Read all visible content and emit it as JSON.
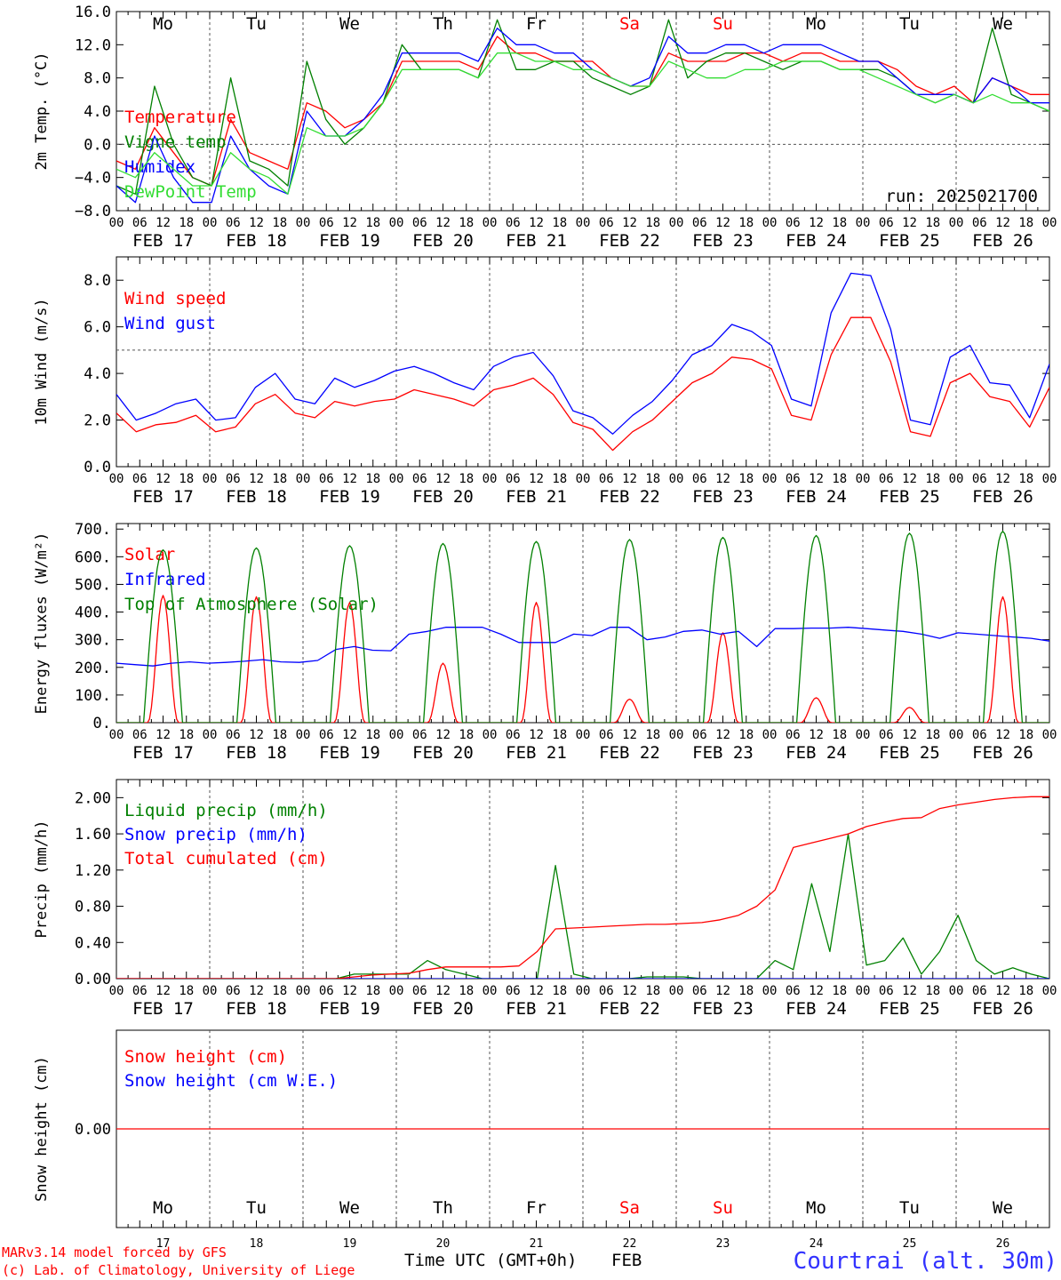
{
  "colors": {
    "red": "#ff0000",
    "darkgreen": "#008000",
    "blue": "#0000ff",
    "lightgreen": "#33dd33",
    "day_red": "#ff0000"
  },
  "days": {
    "weekday": [
      "Mo",
      "Tu",
      "We",
      "Th",
      "Fr",
      "Sa",
      "Su",
      "Mo",
      "Tu",
      "We"
    ],
    "weekend_flags": [
      false,
      false,
      false,
      false,
      false,
      true,
      true,
      false,
      false,
      false
    ],
    "date_labels": [
      "FEB 17",
      "FEB 18",
      "FEB 19",
      "FEB 20",
      "FEB 21",
      "FEB 22",
      "FEB 23",
      "FEB 24",
      "FEB 25",
      "FEB 26"
    ],
    "day_numbers": [
      "17",
      "18",
      "19",
      "20",
      "21",
      "22",
      "23",
      "24",
      "25",
      "26"
    ],
    "hour_ticks": [
      "00",
      "06",
      "12",
      "18"
    ],
    "last_hour": "00"
  },
  "footer": {
    "credit_1": "MARv3.14 model forced by GFS",
    "credit_2": "(c) Lab. of Climatology, University of Liege",
    "xlabel": "Time UTC (GMT+0h)",
    "month": "FEB",
    "station": "Courtrai (alt. 30m)"
  },
  "chart_data": [
    {
      "type": "line",
      "ylabel": "2m Temp. (°C)",
      "ylim": [
        -8,
        16
      ],
      "yticks": [
        -8,
        -4,
        0,
        4,
        8,
        12,
        16
      ],
      "ytick_labels": [
        "−8.0",
        "−4.0",
        "0.0",
        "4.0",
        "8.0",
        "12.0",
        "16.0"
      ],
      "ref_line": 0,
      "run_label": "run: 2025021700",
      "x_unit": "hours since FEB 17 00 UTC (6-hourly)",
      "series": [
        {
          "name": "Temperature",
          "color": "red",
          "values": [
            -2,
            -3,
            2,
            -1,
            -4,
            -5,
            3,
            -1,
            -2,
            -3,
            5,
            4,
            2,
            3,
            5,
            10,
            10,
            10,
            10,
            9,
            13,
            11,
            11,
            10,
            10,
            10,
            8,
            7,
            7,
            11,
            10,
            10,
            10,
            11,
            11,
            10,
            11,
            11,
            10,
            10,
            10,
            9,
            7,
            6,
            7,
            5,
            8,
            7,
            6,
            6
          ]
        },
        {
          "name": "Vigne temp",
          "color": "darkgreen",
          "values": [
            -5,
            -6,
            7,
            0,
            -4,
            -5,
            8,
            -2,
            -3,
            -5,
            10,
            3,
            0,
            2,
            5,
            12,
            9,
            9,
            9,
            8,
            15,
            9,
            9,
            10,
            10,
            8,
            7,
            6,
            7,
            15,
            8,
            10,
            11,
            11,
            10,
            9,
            10,
            10,
            9,
            9,
            9,
            8,
            6,
            5,
            6,
            5,
            14,
            6,
            5,
            4
          ]
        },
        {
          "name": "Humidex",
          "color": "blue",
          "values": [
            -5,
            -7,
            1,
            -4,
            -7,
            -7,
            1,
            -3,
            -5,
            -6,
            4,
            1,
            1,
            3,
            6,
            11,
            11,
            11,
            11,
            10,
            14,
            12,
            12,
            11,
            11,
            9,
            8,
            7,
            8,
            13,
            11,
            11,
            12,
            12,
            11,
            12,
            12,
            12,
            11,
            10,
            10,
            8,
            6,
            6,
            6,
            5,
            8,
            7,
            5,
            5
          ]
        },
        {
          "name": "DewPoint Temp",
          "color": "lightgreen",
          "values": [
            -3,
            -4,
            -1,
            -3,
            -5,
            -5,
            -1,
            -3,
            -4,
            -6,
            2,
            1,
            1,
            2,
            5,
            9,
            9,
            9,
            9,
            8,
            11,
            11,
            10,
            10,
            9,
            9,
            8,
            7,
            7,
            10,
            9,
            8,
            8,
            9,
            9,
            10,
            10,
            10,
            9,
            9,
            8,
            7,
            6,
            5,
            6,
            5,
            6,
            5,
            5,
            4
          ]
        }
      ]
    },
    {
      "type": "line",
      "ylabel": "10m Wind (m/s)",
      "ylim": [
        0,
        9
      ],
      "yticks": [
        0,
        2,
        4,
        6,
        8
      ],
      "ytick_labels": [
        "0.0",
        "2.0",
        "4.0",
        "6.0",
        "8.0"
      ],
      "ref_line": 5,
      "series": [
        {
          "name": "Wind speed",
          "color": "red",
          "values": [
            2.3,
            1.5,
            1.8,
            1.9,
            2.2,
            1.5,
            1.7,
            2.7,
            3.1,
            2.3,
            2.1,
            2.8,
            2.6,
            2.8,
            2.9,
            3.3,
            3.1,
            2.9,
            2.6,
            3.3,
            3.5,
            3.8,
            3.1,
            1.9,
            1.6,
            0.7,
            1.5,
            2.0,
            2.8,
            3.6,
            4.0,
            4.7,
            4.6,
            4.2,
            2.2,
            2.0,
            4.8,
            6.4,
            6.4,
            4.5,
            1.5,
            1.3,
            3.6,
            4.0,
            3.0,
            2.8,
            1.7,
            3.4
          ]
        },
        {
          "name": "Wind gust",
          "color": "blue",
          "values": [
            3.1,
            2.0,
            2.3,
            2.7,
            2.9,
            2.0,
            2.1,
            3.4,
            4.0,
            2.9,
            2.7,
            3.8,
            3.4,
            3.7,
            4.1,
            4.3,
            4.0,
            3.6,
            3.3,
            4.3,
            4.7,
            4.9,
            3.9,
            2.4,
            2.1,
            1.4,
            2.2,
            2.8,
            3.7,
            4.8,
            5.2,
            6.1,
            5.8,
            5.2,
            2.9,
            2.6,
            6.6,
            8.3,
            8.2,
            5.9,
            2.0,
            1.8,
            4.7,
            5.2,
            3.6,
            3.5,
            2.1,
            4.4
          ]
        }
      ]
    },
    {
      "type": "line",
      "ylabel": "Energy fluxes (W/m²)",
      "ylim": [
        0,
        720
      ],
      "yticks": [
        0,
        100,
        200,
        300,
        400,
        500,
        600,
        700
      ],
      "ytick_labels": [
        "0.",
        "100.",
        "200.",
        "300.",
        "400.",
        "500.",
        "600.",
        "700."
      ],
      "series": [
        {
          "name": "Solar",
          "color": "red",
          "peaks": [
            460,
            455,
            435,
            215,
            435,
            85,
            325,
            90,
            55,
            455
          ]
        },
        {
          "name": "Infrared",
          "color": "blue",
          "values": [
            215,
            210,
            205,
            215,
            220,
            215,
            218,
            222,
            228,
            220,
            218,
            225,
            265,
            275,
            262,
            260,
            320,
            330,
            345,
            345,
            345,
            320,
            290,
            290,
            290,
            320,
            315,
            345,
            345,
            300,
            310,
            330,
            335,
            320,
            330,
            275,
            340,
            340,
            342,
            342,
            345,
            340,
            335,
            330,
            320,
            305,
            325,
            320,
            315,
            310,
            305,
            295
          ]
        },
        {
          "name": "Top of Atmosphere (Solar)",
          "color": "darkgreen",
          "peaks": [
            625,
            632,
            640,
            648,
            655,
            662,
            670,
            677,
            685,
            692
          ]
        }
      ]
    },
    {
      "type": "line",
      "ylabel": "Precip (mm/h)",
      "ylim": [
        0,
        2.2
      ],
      "yticks": [
        0,
        0.4,
        0.8,
        1.2,
        1.6,
        2.0
      ],
      "ytick_labels": [
        "0.00",
        "0.40",
        "0.80",
        "1.20",
        "1.60",
        "2.00"
      ],
      "series": [
        {
          "name": "Liquid precip (mm/h)",
          "color": "darkgreen",
          "values": [
            0,
            0,
            0,
            0,
            0,
            0,
            0,
            0,
            0,
            0,
            0,
            0,
            0,
            0.05,
            0.05,
            0.05,
            0.05,
            0.2,
            0.1,
            0.05,
            0,
            0,
            0,
            0,
            1.25,
            0.05,
            0,
            0,
            0,
            0.02,
            0.02,
            0.02,
            0,
            0,
            0,
            0,
            0.2,
            0.1,
            1.05,
            0.3,
            1.6,
            0.15,
            0.2,
            0.45,
            0.05,
            0.3,
            0.7,
            0.2,
            0.05,
            0.12,
            0.05,
            0
          ]
        },
        {
          "name": "Snow precip (mm/h)",
          "color": "blue",
          "values": [
            0,
            0,
            0,
            0,
            0,
            0,
            0,
            0,
            0,
            0,
            0,
            0,
            0,
            0,
            0,
            0,
            0,
            0,
            0,
            0,
            0,
            0,
            0,
            0,
            0,
            0,
            0,
            0,
            0,
            0,
            0,
            0,
            0,
            0,
            0,
            0,
            0,
            0,
            0,
            0,
            0,
            0,
            0,
            0,
            0,
            0,
            0,
            0,
            0,
            0,
            0,
            0
          ]
        },
        {
          "name": "Total cumulated (cm)",
          "color": "red",
          "values": [
            0,
            0,
            0,
            0,
            0,
            0,
            0,
            0,
            0,
            0,
            0,
            0,
            0,
            0.02,
            0.04,
            0.05,
            0.06,
            0.1,
            0.13,
            0.13,
            0.13,
            0.13,
            0.14,
            0.3,
            0.55,
            0.56,
            0.57,
            0.58,
            0.59,
            0.6,
            0.6,
            0.61,
            0.62,
            0.65,
            0.7,
            0.8,
            0.98,
            1.45,
            1.5,
            1.55,
            1.6,
            1.68,
            1.73,
            1.77,
            1.78,
            1.88,
            1.92,
            1.95,
            1.98,
            2.0,
            2.01,
            2.01
          ]
        }
      ]
    },
    {
      "type": "line",
      "ylabel": "Snow height (cm)",
      "ylim": [
        -1,
        1
      ],
      "yticks": [
        0
      ],
      "ytick_labels": [
        "0.00"
      ],
      "series": [
        {
          "name": "Snow height (cm)",
          "color": "red",
          "values": [
            0,
            0
          ]
        },
        {
          "name": "Snow height (cm W.E.)",
          "color": "blue",
          "values": []
        }
      ]
    }
  ]
}
